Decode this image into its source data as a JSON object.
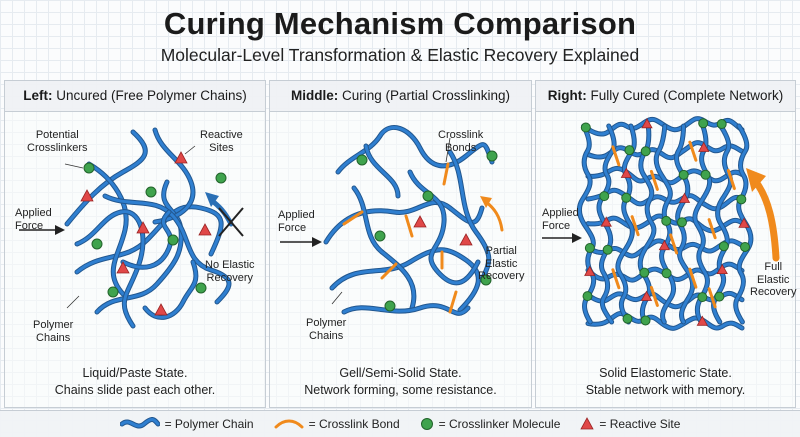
{
  "title": "Curing Mechanism Comparison",
  "subtitle": "Molecular-Level Transformation & Elastic Recovery Explained",
  "colors": {
    "chain": "#2f7fd0",
    "chain_dark": "#22578f",
    "crosslink": "#f08a1c",
    "crosslinker": "#3fa34d",
    "reactive": "#e04848",
    "cross_mark": "#222222"
  },
  "panels": {
    "left": {
      "heading_bold": "Left:",
      "heading_rest": " Uncured (Free Polymer Chains)",
      "labels": {
        "potential_crosslinkers": "Potential\nCrosslinkers",
        "reactive_sites": "Reactive\nSites",
        "applied_force": "Applied\nForce",
        "no_recovery": "No Elastic\nRecovery",
        "polymer_chains": "Polymer\nChains"
      },
      "caption": [
        "Liquid/Paste State.",
        "Chains slide past each other."
      ]
    },
    "middle": {
      "heading_bold": "Middle:",
      "heading_rest": " Curing (Partial Crosslinking)",
      "labels": {
        "crosslink_bonds": "Crosslink\nBonds",
        "applied_force": "Applied\nForce",
        "partial_recovery": "Partial\nElastic\nRecovery",
        "polymer_chains": "Polymer\nChains"
      },
      "caption": [
        "Gell/Semi-Solid State.",
        "Network forming, some resistance."
      ]
    },
    "right": {
      "heading_bold": "Right:",
      "heading_rest": " Fully Cured (Complete Network)",
      "labels": {
        "applied_force": "Applied\nForce",
        "full_recovery": "Full\nElastic\nRecovery"
      },
      "caption": [
        "Solid Elastomeric State.",
        "Stable network with memory."
      ]
    }
  },
  "legend": {
    "polymer_chain": "= Polymer Chain",
    "crosslink_bond": "= Crosslink Bond",
    "crosslinker_molecule": "= Crosslinker Molecule",
    "reactive_site": "= Reactive Site"
  }
}
